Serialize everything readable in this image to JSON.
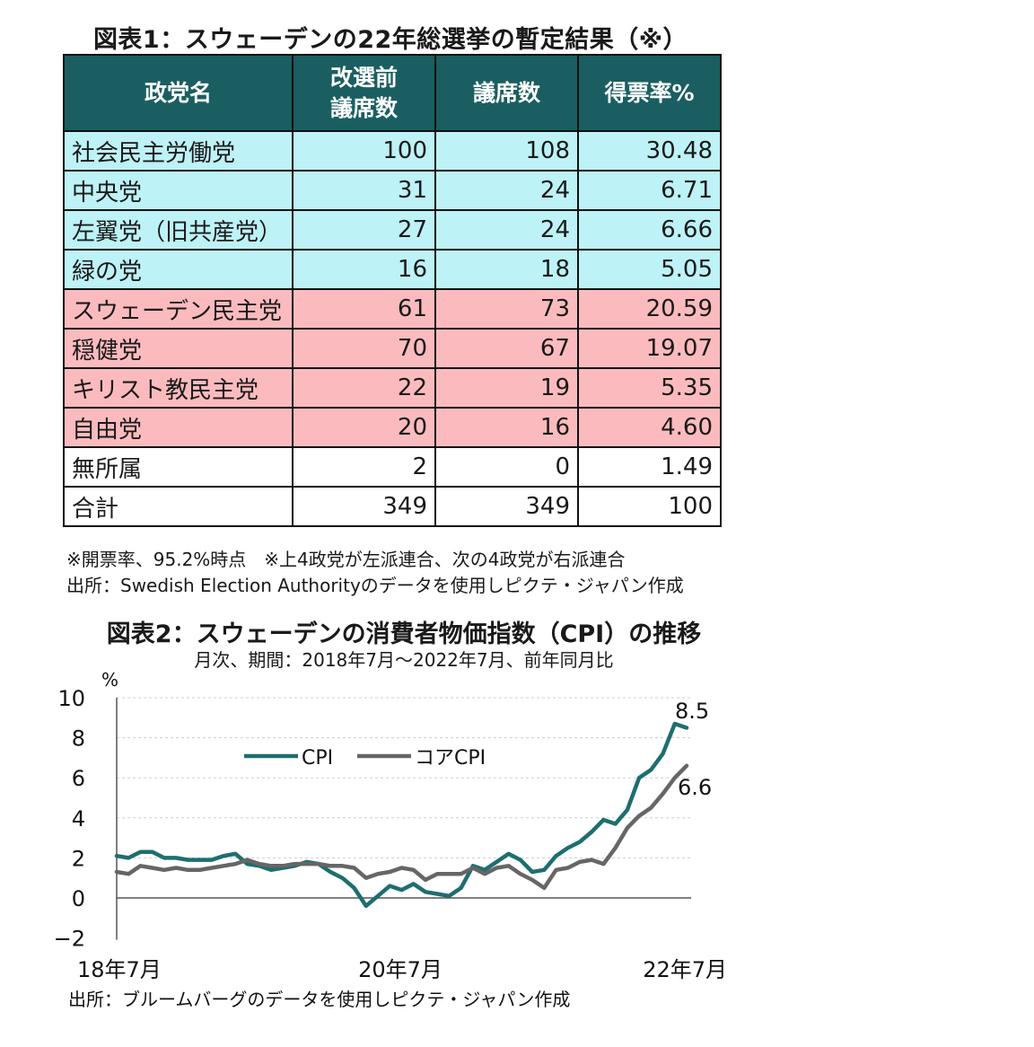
{
  "table": {
    "title": "図表1：スウェーデンの22年総選挙の暫定結果（※）",
    "headers": [
      "政党名",
      "改選前\n議席数",
      "議席数",
      "得票率%"
    ],
    "rows": [
      {
        "party": "社会民主労働党",
        "before": "100",
        "seats": "108",
        "vote": "30.48",
        "group": "left"
      },
      {
        "party": "中央党",
        "before": "31",
        "seats": "24",
        "vote": "6.71",
        "group": "left"
      },
      {
        "party": "左翼党（旧共産党）",
        "before": "27",
        "seats": "24",
        "vote": "6.66",
        "group": "left"
      },
      {
        "party": "緑の党",
        "before": "16",
        "seats": "18",
        "vote": "5.05",
        "group": "left"
      },
      {
        "party": "スウェーデン民主党",
        "before": "61",
        "seats": "73",
        "vote": "20.59",
        "group": "right"
      },
      {
        "party": "穏健党",
        "before": "70",
        "seats": "67",
        "vote": "19.07",
        "group": "right"
      },
      {
        "party": "キリスト教民主党",
        "before": "22",
        "seats": "19",
        "vote": "5.35",
        "group": "right"
      },
      {
        "party": "自由党",
        "before": "20",
        "seats": "16",
        "vote": "4.60",
        "group": "right"
      },
      {
        "party": "無所属",
        "before": "2",
        "seats": "0",
        "vote": "1.49",
        "group": "plain"
      },
      {
        "party": "合計",
        "before": "349",
        "seats": "349",
        "vote": "100",
        "group": "plain"
      }
    ],
    "note1": "※開票率、95.2%時点　※上4政党が左派連合、次の4政党が右派連合",
    "source": "出所：Swedish Election Authorityのデータを使用しピクテ・ジャパン作成"
  },
  "colors": {
    "header_bg": "#1b5e61",
    "left_bloc": "#bdf2f7",
    "right_bloc": "#fbbbbe",
    "cpi": "#1e6e70",
    "core_cpi": "#666666"
  },
  "chart_data": {
    "type": "line",
    "title": "図表2：スウェーデンの消費者物価指数（CPI）の推移",
    "subtitle": "月次、期間：2018年7月～2022年7月、前年同月比",
    "ylabel": "%",
    "ylim": [
      -2,
      10
    ],
    "yticks": [
      "10",
      "8",
      "6",
      "4",
      "2",
      "0",
      "−2"
    ],
    "x_tick_labels": [
      "18年7月",
      "20年7月",
      "22年7月"
    ],
    "x_tick_index": [
      0,
      24,
      48
    ],
    "legend": [
      "CPI",
      "コアCPI"
    ],
    "legend_position": "top-left",
    "annotations": {
      "cpi_last": "8.5",
      "core_last": "6.6"
    },
    "series": [
      {
        "name": "CPI",
        "values": [
          2.1,
          2.0,
          2.3,
          2.3,
          2.0,
          2.0,
          1.9,
          1.9,
          1.9,
          2.1,
          2.2,
          1.7,
          1.6,
          1.4,
          1.5,
          1.6,
          1.8,
          1.7,
          1.3,
          1.0,
          0.5,
          -0.4,
          0.1,
          0.6,
          0.4,
          0.7,
          0.3,
          0.2,
          0.1,
          0.5,
          1.6,
          1.4,
          1.8,
          2.2,
          1.9,
          1.3,
          1.4,
          2.1,
          2.5,
          2.8,
          3.3,
          3.9,
          3.7,
          4.4,
          6.0,
          6.4,
          7.2,
          8.7,
          8.5
        ]
      },
      {
        "name": "コアCPI",
        "values": [
          1.3,
          1.2,
          1.6,
          1.5,
          1.4,
          1.5,
          1.4,
          1.4,
          1.5,
          1.6,
          1.7,
          1.9,
          1.7,
          1.6,
          1.6,
          1.7,
          1.7,
          1.7,
          1.6,
          1.6,
          1.5,
          1.0,
          1.2,
          1.3,
          1.5,
          1.4,
          0.9,
          1.2,
          1.2,
          1.2,
          1.5,
          1.2,
          1.5,
          1.6,
          1.2,
          0.9,
          0.5,
          1.4,
          1.5,
          1.8,
          1.9,
          1.7,
          2.5,
          3.5,
          4.1,
          4.5,
          5.2,
          6.0,
          6.6
        ]
      }
    ],
    "source": "出所：ブルームバーグのデータを使用しピクテ・ジャパン作成"
  }
}
